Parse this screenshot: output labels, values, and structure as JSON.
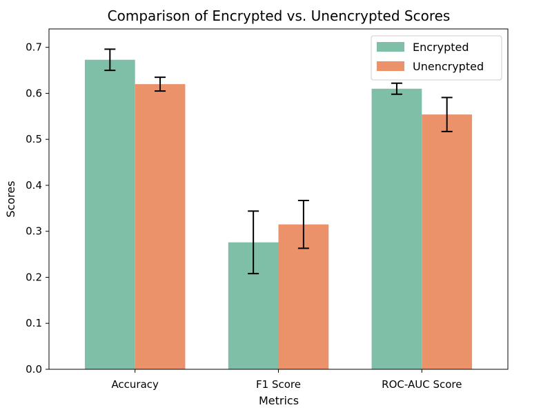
{
  "chart_data": {
    "type": "bar",
    "title": "Comparison of Encrypted vs. Unencrypted Scores",
    "xlabel": "Metrics",
    "ylabel": "Scores",
    "categories": [
      "Accuracy",
      "F1 Score",
      "ROC-AUC Score"
    ],
    "series": [
      {
        "name": "Encrypted",
        "color": "#7fbfa8",
        "values": [
          0.673,
          0.276,
          0.61
        ],
        "errors": [
          0.023,
          0.068,
          0.012
        ]
      },
      {
        "name": "Unencrypted",
        "color": "#eb926a",
        "values": [
          0.62,
          0.315,
          0.554
        ],
        "errors": [
          0.015,
          0.052,
          0.037
        ]
      }
    ],
    "ylim": [
      0,
      0.74
    ],
    "yticks": [
      "0.0",
      "0.1",
      "0.2",
      "0.3",
      "0.4",
      "0.5",
      "0.6",
      "0.7"
    ],
    "legend": "top-right",
    "grid": false
  }
}
